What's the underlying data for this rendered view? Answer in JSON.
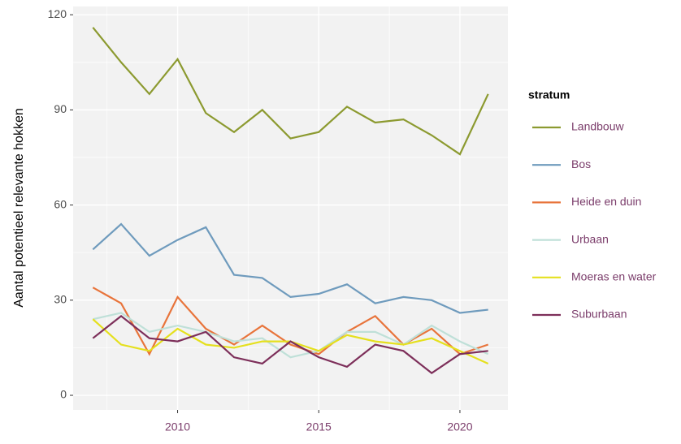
{
  "chart_data": {
    "type": "line",
    "y_label": "Aantal potentieel relevante hokken",
    "legend_title": "stratum",
    "legend": "right",
    "grid": true,
    "x": [
      2007,
      2008,
      2009,
      2010,
      2011,
      2012,
      2013,
      2014,
      2015,
      2016,
      2017,
      2018,
      2019,
      2020,
      2021
    ],
    "xlim": [
      2006.3,
      2021.7
    ],
    "xticks": [
      2010,
      2015,
      2020
    ],
    "xminorticks": [
      2007.5,
      2012.5,
      2017.5
    ],
    "ylim": [
      -4.6,
      122.6
    ],
    "yticks": [
      0,
      30,
      60,
      90,
      120
    ],
    "yminorticks": [
      15,
      45,
      75,
      105
    ],
    "series": [
      {
        "name": "Landbouw",
        "color": "#8c9a30",
        "values": [
          116,
          105,
          95,
          106,
          89,
          83,
          90,
          81,
          83,
          91,
          86,
          87,
          82,
          76,
          95
        ]
      },
      {
        "name": "Bos",
        "color": "#6f9bbd",
        "values": [
          46,
          54,
          44,
          49,
          53,
          38,
          37,
          31,
          32,
          35,
          29,
          31,
          30,
          26,
          27
        ]
      },
      {
        "name": "Heide en duin",
        "color": "#e8743b",
        "values": [
          34,
          29,
          13,
          31,
          21,
          16,
          22,
          16,
          13,
          20,
          25,
          16,
          21,
          13,
          16
        ]
      },
      {
        "name": "Urbaan",
        "color": "#bfe0d8",
        "values": [
          24,
          26,
          20,
          22,
          20,
          17,
          18,
          12,
          14,
          20,
          20,
          16,
          22,
          17,
          13
        ]
      },
      {
        "name": "Moeras en water",
        "color": "#e5e01e",
        "values": [
          24,
          16,
          14,
          21,
          16,
          15,
          17,
          17,
          14,
          19,
          17,
          16,
          18,
          14,
          10
        ]
      },
      {
        "name": "Suburbaan",
        "color": "#7d2f5a",
        "values": [
          18,
          25,
          18,
          17,
          20,
          12,
          10,
          17,
          12,
          9,
          16,
          14,
          7,
          13,
          14
        ]
      }
    ]
  }
}
